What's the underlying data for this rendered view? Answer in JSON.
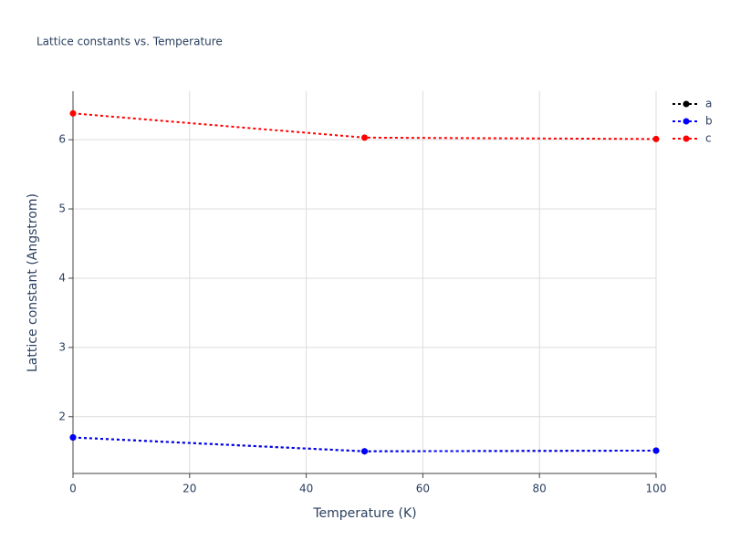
{
  "chart_data": {
    "type": "line",
    "title": "Lattice constants vs. Temperature",
    "x_label": "Temperature (K)",
    "y_label": "Lattice constant (Angstrom)",
    "x": [
      0,
      50,
      100
    ],
    "series": [
      {
        "name": "a",
        "color": "#000000",
        "values": [
          1.7,
          1.5,
          1.51
        ]
      },
      {
        "name": "b",
        "color": "#0000ff",
        "values": [
          1.7,
          1.5,
          1.51
        ]
      },
      {
        "name": "c",
        "color": "#ff0000",
        "values": [
          6.38,
          6.03,
          6.01
        ]
      }
    ],
    "xlim": [
      0,
      100
    ],
    "xticks": [
      0,
      20,
      40,
      60,
      80,
      100
    ],
    "ylim": [
      1.18,
      6.7
    ],
    "yticks": [
      2,
      3,
      4,
      5,
      6
    ],
    "grid": true,
    "legend": "right"
  }
}
